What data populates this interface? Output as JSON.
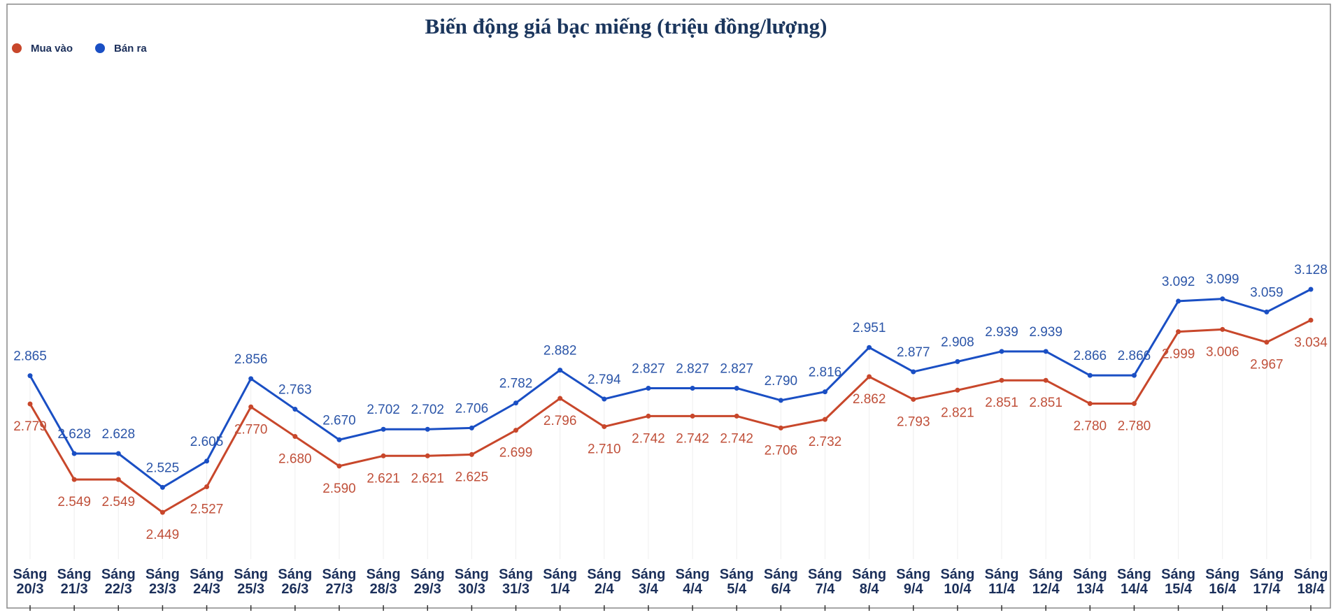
{
  "chart_data": {
    "type": "line",
    "title": "Biến động giá bạc miếng (triệu đồng/lượng)",
    "legend_position": "top-left",
    "grid": false,
    "categories": [
      [
        "Sáng",
        "20/3"
      ],
      [
        "Sáng",
        "21/3"
      ],
      [
        "Sáng",
        "22/3"
      ],
      [
        "Sáng",
        "23/3"
      ],
      [
        "Sáng",
        "24/3"
      ],
      [
        "Sáng",
        "25/3"
      ],
      [
        "Sáng",
        "26/3"
      ],
      [
        "Sáng",
        "27/3"
      ],
      [
        "Sáng",
        "28/3"
      ],
      [
        "Sáng",
        "29/3"
      ],
      [
        "Sáng",
        "30/3"
      ],
      [
        "Sáng",
        "31/3"
      ],
      [
        "Sáng",
        "1/4"
      ],
      [
        "Sáng",
        "2/4"
      ],
      [
        "Sáng",
        "3/4"
      ],
      [
        "Sáng",
        "4/4"
      ],
      [
        "Sáng",
        "5/4"
      ],
      [
        "Sáng",
        "6/4"
      ],
      [
        "Sáng",
        "7/4"
      ],
      [
        "Sáng",
        "8/4"
      ],
      [
        "Sáng",
        "9/4"
      ],
      [
        "Sáng",
        "10/4"
      ],
      [
        "Sáng",
        "11/4"
      ],
      [
        "Sáng",
        "12/4"
      ],
      [
        "Sáng",
        "13/4"
      ],
      [
        "Sáng",
        "14/4"
      ],
      [
        "Sáng",
        "15/4"
      ],
      [
        "Sáng",
        "16/4"
      ],
      [
        "Sáng",
        "17/4"
      ],
      [
        "Sáng",
        "18/4"
      ]
    ],
    "series": [
      {
        "name": "Mua vào",
        "color": "#c8472b",
        "label_color": "#c0503a",
        "values": [
          2.779,
          2.549,
          2.549,
          2.449,
          2.527,
          2.77,
          2.68,
          2.59,
          2.621,
          2.621,
          2.625,
          2.699,
          2.796,
          2.71,
          2.742,
          2.742,
          2.742,
          2.706,
          2.732,
          2.862,
          2.793,
          2.821,
          2.851,
          2.851,
          2.78,
          2.78,
          2.999,
          3.006,
          2.967,
          3.034
        ],
        "labels": [
          "2.779",
          "2.549",
          "2.549",
          "2.449",
          "2.527",
          "2.770",
          "2.680",
          "2.590",
          "2.621",
          "2.621",
          "2.625",
          "2.699",
          "2.796",
          "2.710",
          "2.742",
          "2.742",
          "2.742",
          "2.706",
          "2.732",
          "2.862",
          "2.793",
          "2.821",
          "2.851",
          "2.851",
          "2.780",
          "2.780",
          "2.999",
          "3.006",
          "2.967",
          "3.034"
        ]
      },
      {
        "name": "Bán ra",
        "color": "#1a4fc4",
        "label_color": "#2b55a8",
        "values": [
          2.865,
          2.628,
          2.628,
          2.525,
          2.605,
          2.856,
          2.763,
          2.67,
          2.702,
          2.702,
          2.706,
          2.782,
          2.882,
          2.794,
          2.827,
          2.827,
          2.827,
          2.79,
          2.816,
          2.951,
          2.877,
          2.908,
          2.939,
          2.939,
          2.866,
          2.866,
          3.092,
          3.099,
          3.059,
          3.128
        ],
        "labels": [
          "2.865",
          "2.628",
          "2.628",
          "2.525",
          "2.605",
          "2.856",
          "2.763",
          "2.670",
          "2.702",
          "2.702",
          "2.706",
          "2.782",
          "2.882",
          "2.794",
          "2.827",
          "2.827",
          "2.827",
          "2.790",
          "2.816",
          "2.951",
          "2.877",
          "2.908",
          "2.939",
          "2.939",
          "2.866",
          "2.866",
          "3.092",
          "3.099",
          "3.059",
          "3.128"
        ]
      }
    ]
  }
}
